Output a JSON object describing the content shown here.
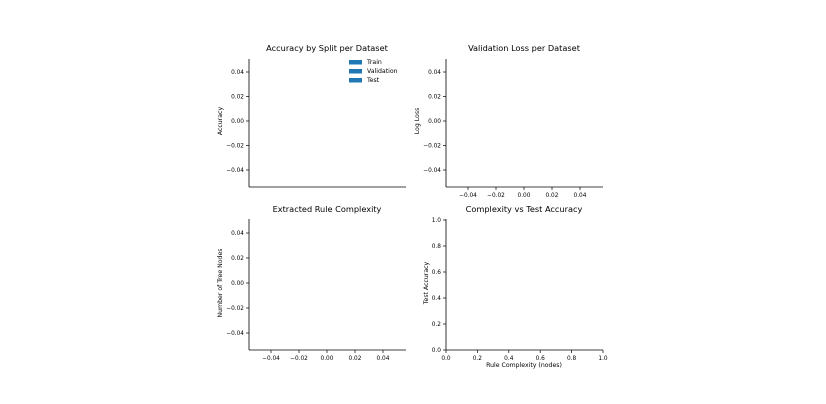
{
  "chart_data": [
    {
      "type": "bar",
      "title": "Accuracy by Split per Dataset",
      "xlabel": "",
      "ylabel": "Accuracy",
      "categories": [],
      "series": [
        {
          "name": "Train",
          "values": []
        },
        {
          "name": "Validation",
          "values": []
        },
        {
          "name": "Test",
          "values": []
        }
      ],
      "ylim": [
        -0.055,
        0.055
      ],
      "yticks": [
        "0.04",
        "0.02",
        "0.00",
        "−0.02",
        "−0.04"
      ],
      "xticks": [],
      "legend": "top-right",
      "series_color": "#1f77b4",
      "grid": false
    },
    {
      "type": "bar",
      "title": "Validation Loss per Dataset",
      "xlabel": "",
      "ylabel": "Log Loss",
      "categories": [],
      "values": [],
      "xlim": [
        -0.055,
        0.055
      ],
      "ylim": [
        -0.055,
        0.055
      ],
      "yticks": [
        "0.04",
        "0.02",
        "0.00",
        "−0.02",
        "−0.04"
      ],
      "xticks": [
        "−0.04",
        "−0.02",
        "0.00",
        "0.02",
        "0.04"
      ],
      "grid": false
    },
    {
      "type": "bar",
      "title": "Extracted Rule Complexity",
      "xlabel": "",
      "ylabel": "Number of Tree Nodes",
      "categories": [],
      "values": [],
      "xlim": [
        -0.055,
        0.055
      ],
      "ylim": [
        -0.055,
        0.055
      ],
      "yticks": [
        "0.04",
        "0.02",
        "0.00",
        "−0.02",
        "−0.04"
      ],
      "xticks": [
        "−0.04",
        "−0.02",
        "0.00",
        "0.02",
        "0.04"
      ],
      "grid": false
    },
    {
      "type": "scatter",
      "title": "Complexity vs Test Accuracy",
      "xlabel": "Rule Complexity (nodes)",
      "ylabel": "Test Accuracy",
      "x": [],
      "y": [],
      "xlim": [
        0,
        1
      ],
      "ylim": [
        0,
        1
      ],
      "yticks": [
        "1.0",
        "0.8",
        "0.6",
        "0.4",
        "0.2",
        "0.0"
      ],
      "xticks": [
        "0.0",
        "0.2",
        "0.4",
        "0.6",
        "0.8",
        "1.0"
      ],
      "grid": false
    }
  ]
}
